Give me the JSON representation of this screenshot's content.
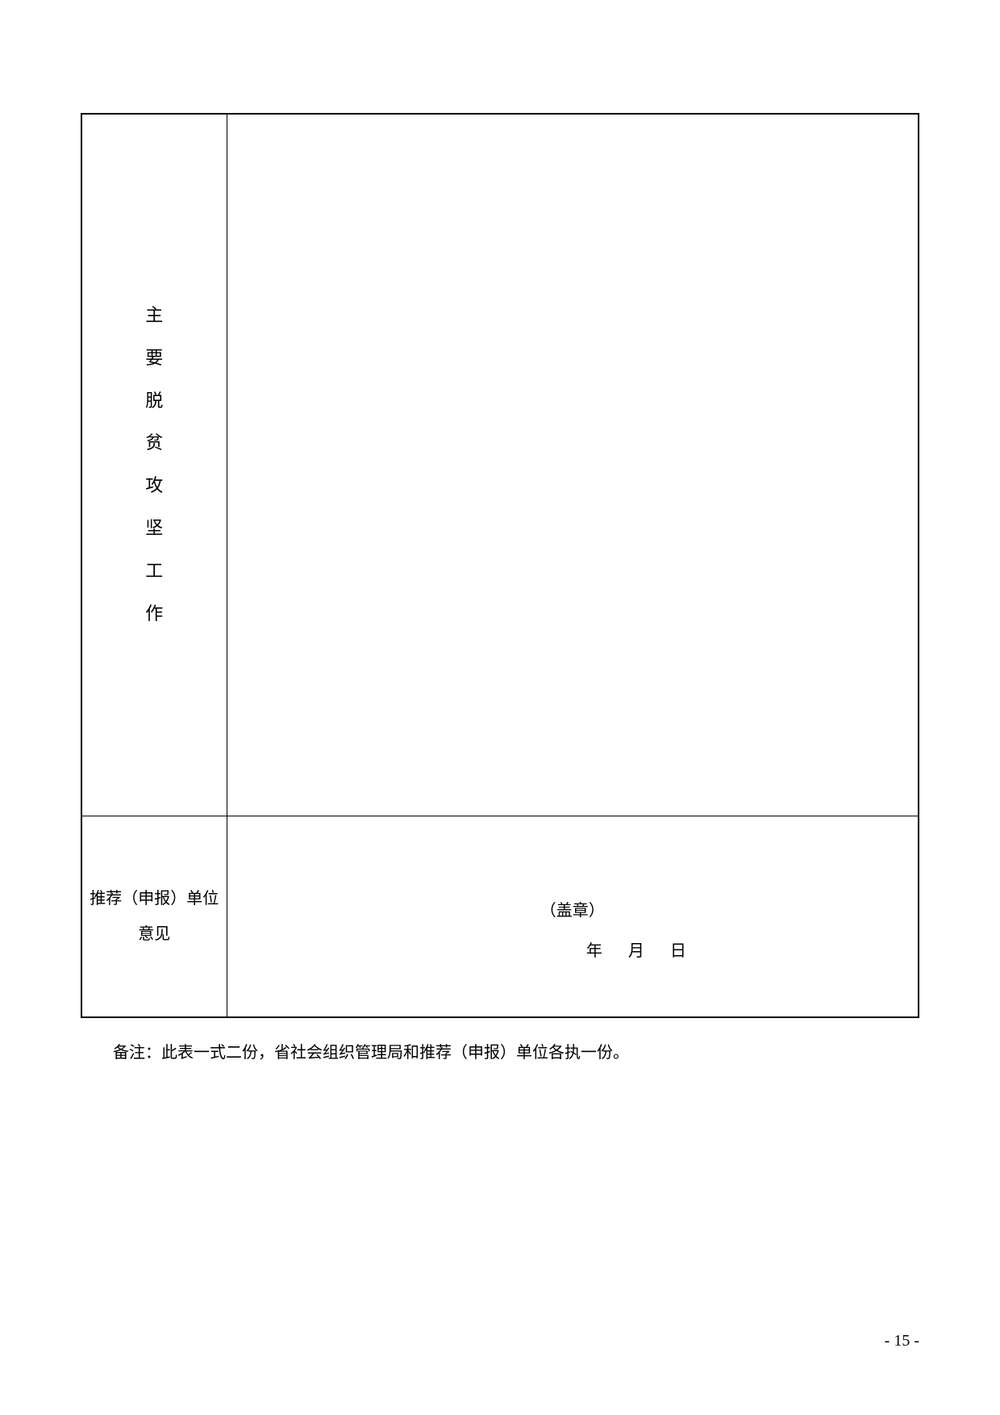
{
  "table": {
    "row1": {
      "label_chars": [
        "主",
        "要",
        "脱",
        "贫",
        "攻",
        "坚",
        "工",
        "作"
      ]
    },
    "row2": {
      "label_line1": "推荐（申报）单位",
      "label_line2": "意见",
      "stamp": "（盖章）",
      "date": "年　月　日"
    }
  },
  "note": "备注：此表一式二份，省社会组织管理局和推荐（申报）单位各执一份。",
  "page_number": "- 15 -",
  "colors": {
    "background": "#ffffff",
    "border": "#000000",
    "text": "#000000"
  },
  "typography": {
    "body_fontsize": 20,
    "label_fontsize": 22,
    "font_family": "SimSun"
  }
}
